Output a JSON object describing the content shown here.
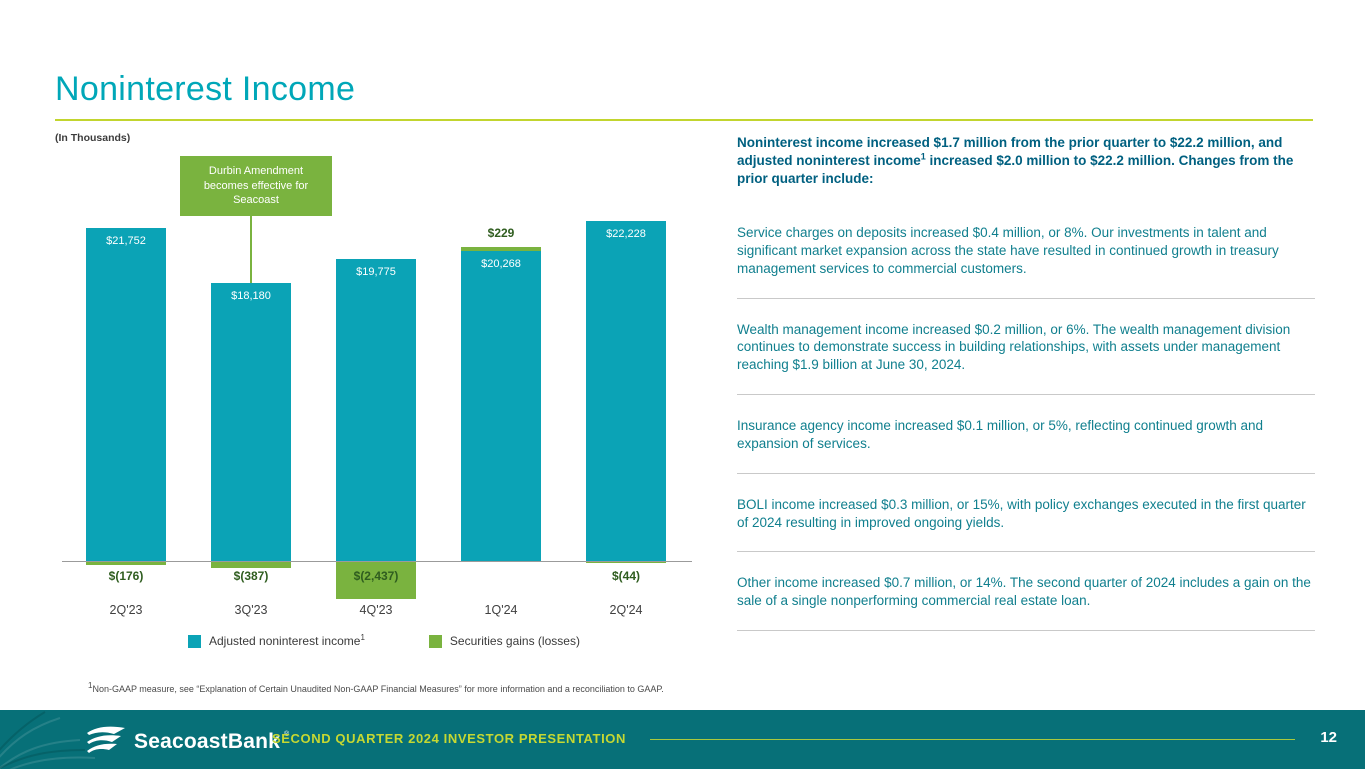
{
  "slide": {
    "title": "Noninterest Income",
    "units_label": "(In Thousands)",
    "footnote_sup": "1",
    "footnote_text": "Non-GAAP measure, see “Explanation of Certain Unaudited Non-GAAP Financial Measures” for more information and a reconciliation to GAAP."
  },
  "chart_data": {
    "type": "bar",
    "categories": [
      "2Q'23",
      "3Q'23",
      "4Q'23",
      "1Q'24",
      "2Q'24"
    ],
    "series": [
      {
        "name": "Adjusted noninterest income",
        "values": [
          21752,
          18180,
          19775,
          20268,
          22228
        ],
        "color": "#0BA3B6"
      },
      {
        "name": "Securities gains (losses)",
        "values": [
          -176,
          -387,
          -2437,
          229,
          -44
        ],
        "color": "#7AB33F"
      }
    ],
    "bar_labels": [
      "$21,752",
      "$18,180",
      "$19,775",
      "$20,268",
      "$22,228"
    ],
    "securities_labels": [
      "$(176)",
      "$(387)",
      "$(2,437)",
      "$229",
      "$(44)"
    ],
    "annotation": "Durbin Amendment becomes effective for Seacoast",
    "annotation_target": "3Q'23",
    "ylim": [
      -2500,
      23000
    ],
    "grid": false,
    "legend_position": "bottom"
  },
  "legend": [
    {
      "label": "Adjusted noninterest income",
      "sup": "1"
    },
    {
      "label": "Securities gains (losses)",
      "sup": ""
    }
  ],
  "right_panel": {
    "heading_part1": "Noninterest income increased $1.7 million from the prior quarter to $22.2 million, and adjusted noninterest income",
    "heading_sup": "1",
    "heading_part2": " increased $2.0 million to $22.2 million. Changes from the prior quarter include:",
    "items": [
      "Service charges on deposits increased $0.4 million, or 8%. Our investments in talent and significant market expansion across the state have resulted in continued growth in treasury management services to commercial customers.",
      "Wealth management income increased $0.2 million, or 6%. The wealth management division continues to demonstrate success in building relationships, with assets under management reaching $1.9 billion at June 30, 2024.",
      "Insurance agency income increased $0.1 million, or 5%, reflecting continued growth and expansion of services.",
      "BOLI income increased $0.3 million, or 15%, with policy exchanges executed in the first quarter of 2024 resulting in improved ongoing yields.",
      "Other income increased $0.7 million, or 14%. The second quarter of 2024 includes a gain on the sale of a single nonperforming commercial real estate loan."
    ]
  },
  "footer": {
    "brand": "SeacoastBank",
    "reg_mark": "®",
    "presentation_title": "SECOND QUARTER 2024 INVESTOR PRESENTATION",
    "page_number": "12"
  },
  "colors": {
    "bar_teal": "#0BA3B6",
    "securities_green": "#7AB33F",
    "title_teal": "#00A7B8",
    "heading_teal": "#006080",
    "body_teal": "#107F8E",
    "accent_rule": "#C2D52E",
    "footer_bg": "#077078"
  }
}
